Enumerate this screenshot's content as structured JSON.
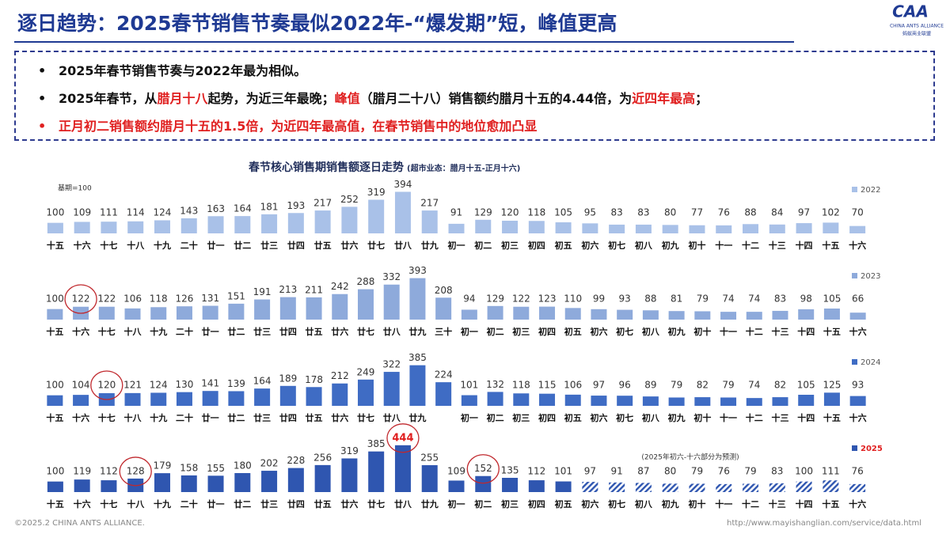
{
  "header": {
    "title": "逐日趋势：2025春节销售节奏最似2022年-“爆发期”短，峰值更高",
    "logo": {
      "mark": "CAA",
      "name": "CHINA ANTS ALLIANCE",
      "sub": "蚂蚁商业联盟"
    }
  },
  "bullets": [
    [
      {
        "text": "2025年春节销售节奏与2022年最为相似。",
        "red": false
      }
    ],
    [
      {
        "text": "2025年春节，从",
        "red": false
      },
      {
        "text": "腊月十八",
        "red": true
      },
      {
        "text": "起势，为近三年最晚；",
        "red": false
      },
      {
        "text": "峰值",
        "red": true
      },
      {
        "text": "（腊月二十八）销售额约腊月十五的4.44倍，为",
        "red": false
      },
      {
        "text": "近四年最高",
        "red": true
      },
      {
        "text": "；",
        "red": false
      }
    ],
    [
      {
        "text": "正月初二销售额约腊月十五的1.5倍，为近四年最高值，在春节销售中的地位愈加凸显",
        "red": true
      }
    ]
  ],
  "chart_data": [
    {
      "type": "bar",
      "title": "春节核心销售期销售额逐日走势",
      "subtitle": "(超市业态：腊月十五-正月十六)",
      "annotation": "基期=100",
      "categories": [
        "十五",
        "十六",
        "十七",
        "十八",
        "十九",
        "二十",
        "廿一",
        "廿二",
        "廿三",
        "廿四",
        "廿五",
        "廿六",
        "廿七",
        "廿八",
        "廿九",
        "初一",
        "初二",
        "初三",
        "初四",
        "初五",
        "初六",
        "初七",
        "初八",
        "初九",
        "初十",
        "十一",
        "十二",
        "十三",
        "十四",
        "十五",
        "十六"
      ],
      "series": [
        {
          "name": "2022",
          "color": "#a9c1e8",
          "values": [
            100,
            109,
            111,
            114,
            124,
            143,
            163,
            164,
            181,
            193,
            217,
            252,
            319,
            394,
            217,
            91,
            129,
            120,
            118,
            105,
            95,
            83,
            83,
            80,
            77,
            76,
            88,
            84,
            97,
            102,
            70
          ]
        }
      ],
      "ylim": [
        0,
        450
      ],
      "highlight": [],
      "red_value_labels": []
    },
    {
      "type": "bar",
      "categories": [
        "十五",
        "十六",
        "十七",
        "十八",
        "十九",
        "二十",
        "廿一",
        "廿二",
        "廿三",
        "廿四",
        "廿五",
        "廿六",
        "廿七",
        "廿八",
        "廿九",
        "三十",
        "初一",
        "初二",
        "初三",
        "初四",
        "初五",
        "初六",
        "初七",
        "初八",
        "初九",
        "初十",
        "十一",
        "十二",
        "十三",
        "十四",
        "十五",
        "十六"
      ],
      "series": [
        {
          "name": "2023",
          "color": "#8eaadb",
          "values": [
            100,
            122,
            122,
            106,
            118,
            126,
            131,
            151,
            191,
            213,
            211,
            242,
            288,
            332,
            393,
            208,
            94,
            129,
            122,
            123,
            110,
            99,
            93,
            88,
            81,
            79,
            74,
            74,
            83,
            98,
            105,
            66
          ]
        }
      ],
      "ylim": [
        0,
        450
      ],
      "highlight": [
        1
      ],
      "red_value_labels": []
    },
    {
      "type": "bar",
      "categories": [
        "十五",
        "十六",
        "十七",
        "十八",
        "十九",
        "二十",
        "廿一",
        "廿二",
        "廿三",
        "廿四",
        "廿五",
        "廿六",
        "廿七",
        "廿八",
        "廿九",
        null,
        "初一",
        "初二",
        "初三",
        "初四",
        "初五",
        "初六",
        "初七",
        "初八",
        "初九",
        "初十",
        "十一",
        "十二",
        "十三",
        "十四",
        "十五",
        "十六"
      ],
      "series": [
        {
          "name": "2024",
          "color": "#3f6cc4",
          "values": [
            100,
            104,
            120,
            121,
            124,
            130,
            141,
            139,
            164,
            189,
            178,
            212,
            249,
            322,
            385,
            224,
            101,
            132,
            118,
            115,
            106,
            97,
            96,
            89,
            79,
            82,
            79,
            74,
            82,
            105,
            125,
            93
          ]
        }
      ],
      "ylim": [
        0,
        450
      ],
      "highlight": [
        2
      ],
      "red_value_labels": []
    },
    {
      "type": "bar",
      "annotation": "(2025年初六-十六部分为预测)",
      "legend_text_color": "#e02020",
      "categories": [
        "十五",
        "十六",
        "十七",
        "十八",
        "十九",
        "二十",
        "廿一",
        "廿二",
        "廿三",
        "廿四",
        "廿五",
        "廿六",
        "廿七",
        "廿八",
        "廿九",
        "初一",
        "初二",
        "初三",
        "初四",
        "初五",
        "初六",
        "初七",
        "初八",
        "初九",
        "初十",
        "十一",
        "十二",
        "十三",
        "十四",
        "十五",
        "十六"
      ],
      "series": [
        {
          "name": "2025",
          "color": "#2f56b0",
          "values": [
            100,
            119,
            112,
            128,
            179,
            158,
            155,
            180,
            202,
            228,
            256,
            319,
            385,
            444,
            255,
            109,
            152,
            135,
            112,
            101,
            97,
            91,
            87,
            80,
            79,
            76,
            79,
            83,
            100,
            111,
            76
          ],
          "forecast": [
            false,
            false,
            false,
            false,
            false,
            false,
            false,
            false,
            false,
            false,
            false,
            false,
            false,
            false,
            false,
            false,
            false,
            false,
            false,
            false,
            true,
            true,
            true,
            true,
            true,
            true,
            true,
            true,
            true,
            true,
            true
          ]
        }
      ],
      "ylim": [
        0,
        450
      ],
      "highlight": [
        3,
        13,
        16
      ],
      "red_value_labels": [
        13
      ]
    }
  ],
  "footer": {
    "left": "©2025.2 CHINA ANTS ALLIANCE.",
    "right": "http://www.mayishanglian.com/service/data.html"
  }
}
